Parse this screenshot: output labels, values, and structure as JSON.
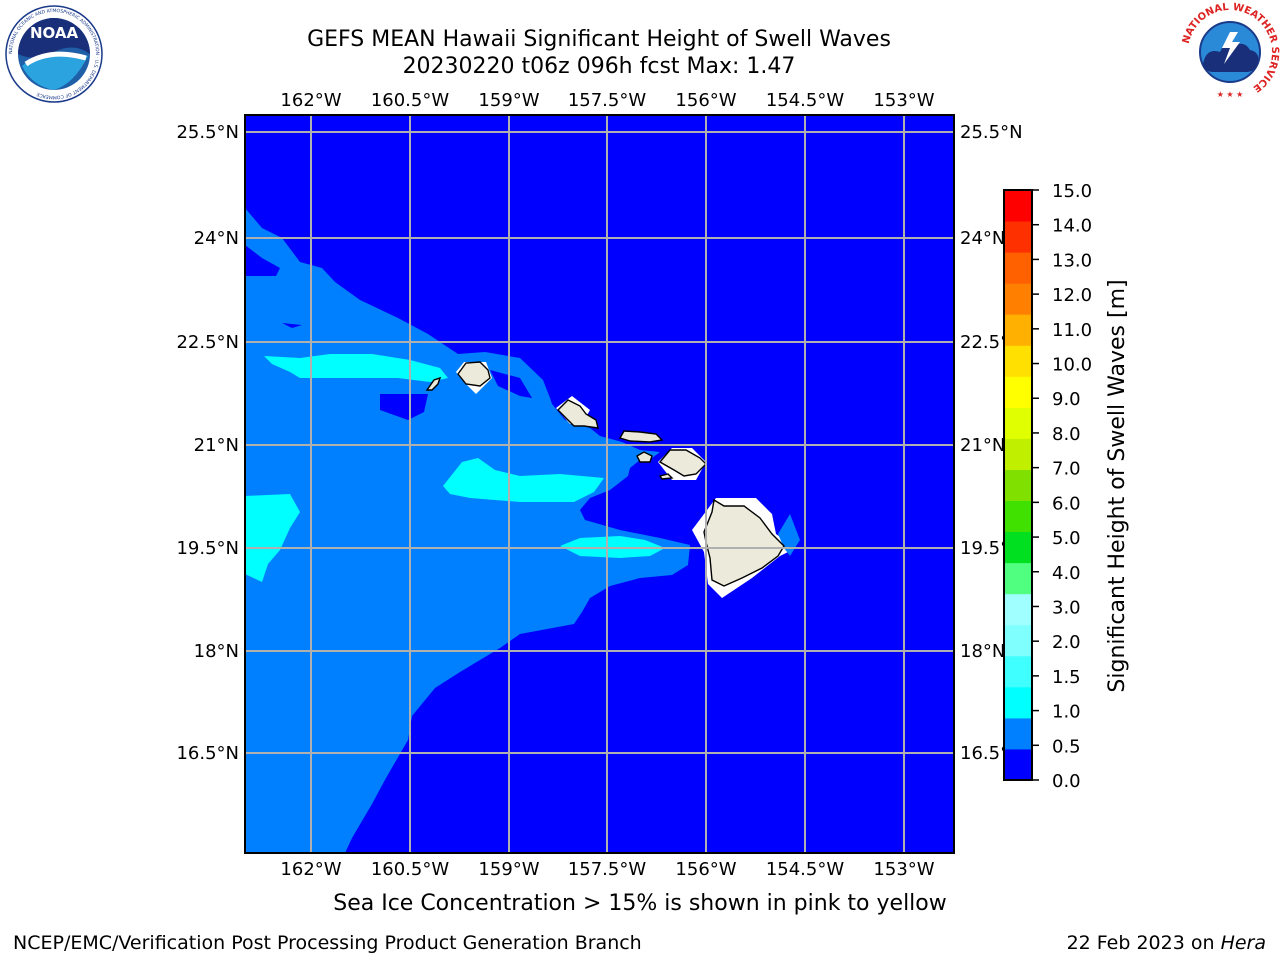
{
  "header": {
    "title_line1": "GEFS MEAN Hawaii Significant Height of Swell Waves",
    "title_line2": "20230220 t06z 096h fcst   Max: 1.47"
  },
  "logos": {
    "left": {
      "name": "noaa-logo",
      "text": "NOAA",
      "ring_text": "NATIONAL OCEANIC AND ATMOSPHERIC ADMINISTRATION · U.S. DEPARTMENT OF COMMERCE"
    },
    "right": {
      "name": "nws-logo",
      "ring_text": "NATIONAL WEATHER SERVICE"
    }
  },
  "map": {
    "lon_labels": [
      "162°W",
      "160.5°W",
      "159°W",
      "157.5°W",
      "156°W",
      "154.5°W",
      "153°W"
    ],
    "lat_labels": [
      "25.5°N",
      "24°N",
      "22.5°N",
      "21°N",
      "19.5°N",
      "18°N",
      "16.5°N"
    ],
    "colors": {
      "ocean_base": "#0000ff",
      "band_0_5_1_0": "#0080ff",
      "band_1_0_1_5": "#00ffff",
      "land": "#ecebdb",
      "grid": "#b0b0b0"
    }
  },
  "colorbar": {
    "label": "Significant Height of Swell Waves [m]",
    "ticks": [
      "15.0",
      "14.0",
      "13.0",
      "12.0",
      "11.0",
      "10.0",
      "9.0",
      "8.0",
      "7.0",
      "6.0",
      "5.0",
      "4.0",
      "3.0",
      "2.0",
      "1.5",
      "1.0",
      "0.5",
      "0.0"
    ],
    "colors_bottom_to_top": [
      "#0000ff",
      "#0080ff",
      "#00ffff",
      "#40ffff",
      "#80ffff",
      "#a0ffff",
      "#50ff80",
      "#00e020",
      "#40e000",
      "#80e000",
      "#c0f000",
      "#e0ff00",
      "#ffff00",
      "#ffe000",
      "#ffb000",
      "#ff8000",
      "#ff6000",
      "#ff3000",
      "#ff0000"
    ]
  },
  "footer": {
    "caption": "Sea Ice Concentration > 15% is shown in pink to yellow",
    "left": "NCEP/EMC/Verification Post Processing Product Generation Branch",
    "right_prefix": "22 Feb 2023 on ",
    "right_host": "Hera"
  }
}
